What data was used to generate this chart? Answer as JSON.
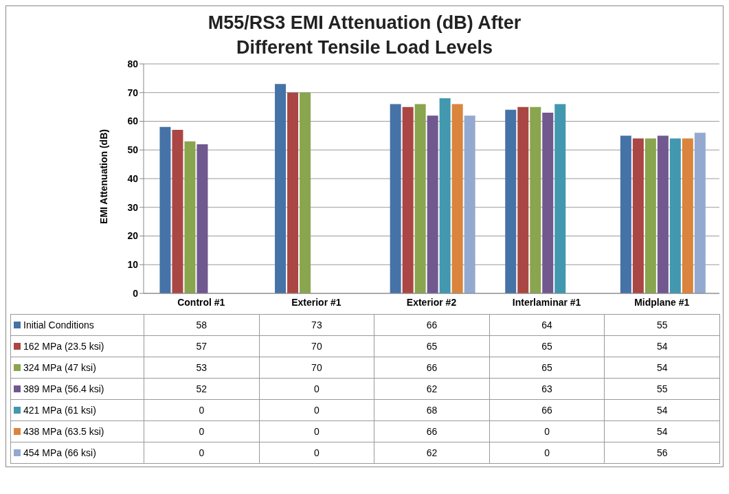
{
  "chart_data": {
    "type": "bar",
    "title": "M55/RS3 EMI Attenuation (dB) After Different Tensile Load Levels",
    "ylabel": "EMI Attenuation (dB)",
    "categories": [
      "Control #1",
      "Exterior #1",
      "Exterior #2",
      "Interlaminar #1",
      "Midplane #1"
    ],
    "series": [
      {
        "name": "Initial Conditions",
        "color": "#4572a7",
        "values": [
          58,
          73,
          66,
          64,
          55
        ]
      },
      {
        "name": "162 MPa (23.5 ksi)",
        "color": "#aa4643",
        "values": [
          57,
          70,
          65,
          65,
          54
        ]
      },
      {
        "name": "324 MPa (47 ksi)",
        "color": "#89a54e",
        "values": [
          53,
          70,
          66,
          65,
          54
        ]
      },
      {
        "name": "389 MPa (56.4 ksi)",
        "color": "#71588f",
        "values": [
          52,
          0,
          62,
          63,
          55
        ]
      },
      {
        "name": "421 MPa (61 ksi)",
        "color": "#4198af",
        "values": [
          0,
          0,
          68,
          66,
          54
        ]
      },
      {
        "name": "438 MPa (63.5 ksi)",
        "color": "#db843d",
        "values": [
          0,
          0,
          66,
          0,
          54
        ]
      },
      {
        "name": "454 MPa (66 ksi)",
        "color": "#93a9cf",
        "values": [
          0,
          0,
          62,
          0,
          56
        ]
      }
    ],
    "ylim": [
      0,
      80
    ],
    "yticks": [
      0,
      10,
      20,
      30,
      40,
      50,
      60,
      70,
      80
    ],
    "grid": "y",
    "legend": "bottom left",
    "data_labels": true
  }
}
